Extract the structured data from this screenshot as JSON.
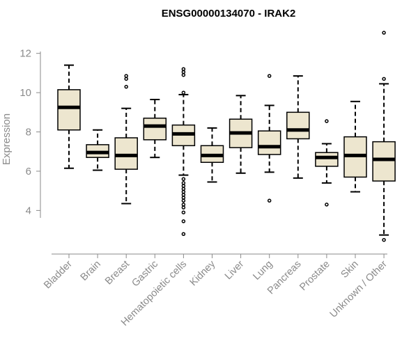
{
  "chart_data": {
    "type": "boxplot",
    "title": "ENSG00000134070 - IRAK2",
    "xlabel": "",
    "ylabel": "Expression",
    "ylim": [
      2.1,
      13.3
    ],
    "yticks": [
      4,
      6,
      8,
      10,
      12
    ],
    "grid": false,
    "colors": {
      "box_fill": "#ede6cf",
      "box_stroke": "#000000",
      "median": "#000000",
      "axis": "#8a8a8a"
    },
    "categories": [
      "Bladder",
      "Brain",
      "Breast",
      "Gastric",
      "Hematopoietic cells",
      "Kidney",
      "Liver",
      "Lung",
      "Pancreas",
      "Prostate",
      "Skin",
      "Unknown / Other"
    ],
    "boxes": [
      {
        "category": "Bladder",
        "q1": 8.1,
        "median": 9.25,
        "q3": 10.15,
        "whisker_low": 6.15,
        "whisker_high": 11.4,
        "outliers": []
      },
      {
        "category": "Brain",
        "q1": 6.7,
        "median": 6.95,
        "q3": 7.35,
        "whisker_low": 6.05,
        "whisker_high": 8.1,
        "outliers": []
      },
      {
        "category": "Breast",
        "q1": 6.1,
        "median": 6.8,
        "q3": 7.7,
        "whisker_low": 4.35,
        "whisker_high": 9.2,
        "outliers": [
          10.3,
          10.7,
          10.85
        ]
      },
      {
        "category": "Gastric",
        "q1": 7.6,
        "median": 8.3,
        "q3": 8.7,
        "whisker_low": 6.7,
        "whisker_high": 9.65,
        "outliers": []
      },
      {
        "category": "Hematopoietic cells",
        "q1": 7.3,
        "median": 7.9,
        "q3": 8.35,
        "whisker_low": 5.8,
        "whisker_high": 9.9,
        "outliers": [
          2.8,
          3.45,
          3.9,
          4.15,
          4.3,
          4.5,
          4.65,
          4.8,
          4.95,
          5.1,
          5.25,
          5.4,
          5.6,
          10.0,
          10.9,
          11.05,
          11.2
        ]
      },
      {
        "category": "Kidney",
        "q1": 6.45,
        "median": 6.8,
        "q3": 7.3,
        "whisker_low": 5.45,
        "whisker_high": 8.2,
        "outliers": []
      },
      {
        "category": "Liver",
        "q1": 7.2,
        "median": 7.95,
        "q3": 8.65,
        "whisker_low": 5.9,
        "whisker_high": 9.85,
        "outliers": []
      },
      {
        "category": "Lung",
        "q1": 6.85,
        "median": 7.25,
        "q3": 8.05,
        "whisker_low": 5.95,
        "whisker_high": 9.35,
        "outliers": [
          4.5,
          10.85
        ]
      },
      {
        "category": "Pancreas",
        "q1": 7.65,
        "median": 8.1,
        "q3": 9.0,
        "whisker_low": 5.65,
        "whisker_high": 10.85,
        "outliers": []
      },
      {
        "category": "Prostate",
        "q1": 6.25,
        "median": 6.7,
        "q3": 6.95,
        "whisker_low": 5.4,
        "whisker_high": 7.4,
        "outliers": [
          4.3,
          8.55
        ]
      },
      {
        "category": "Skin",
        "q1": 5.7,
        "median": 6.8,
        "q3": 7.75,
        "whisker_low": 4.95,
        "whisker_high": 9.55,
        "outliers": []
      },
      {
        "category": "Unknown / Other",
        "q1": 5.5,
        "median": 6.6,
        "q3": 7.5,
        "whisker_low": 2.75,
        "whisker_high": 10.45,
        "outliers": [
          2.5,
          10.7,
          13.05
        ]
      }
    ]
  }
}
